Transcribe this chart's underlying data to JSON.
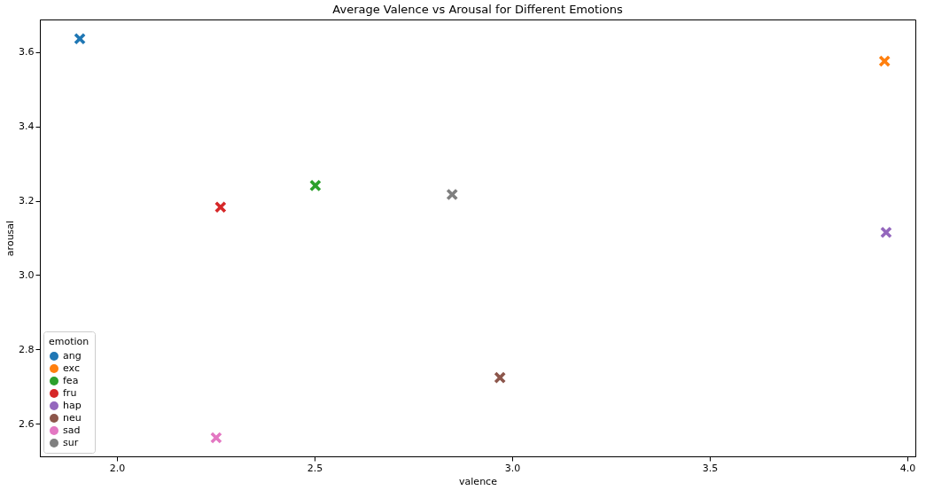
{
  "chart_data": {
    "type": "scatter",
    "title": "Average Valence vs Arousal for Different Emotions",
    "xlabel": "valence",
    "ylabel": "arousal",
    "legend_title": "emotion",
    "legend": "bottom left",
    "grid": false,
    "marker": "cross",
    "xlim": [
      1.805,
      4.02
    ],
    "xticks": [
      {
        "value": 2,
        "label": "2.0"
      },
      2.5,
      {
        "value": 3,
        "label": "3.0"
      },
      3.5,
      {
        "value": 4,
        "label": "4.0"
      }
    ],
    "ylim": [
      2.512,
      3.688
    ],
    "yticks": [
      2.6,
      2.8,
      {
        "value": 3,
        "label": "3.0"
      },
      3.2,
      3.4,
      3.6
    ],
    "series": [
      {
        "name": "ang",
        "color": "#1f77b4",
        "x": [
          1.906
        ],
        "values": [
          3.636
        ]
      },
      {
        "name": "exc",
        "color": "#ff7f0e",
        "x": [
          3.942
        ],
        "values": [
          3.576
        ]
      },
      {
        "name": "fea",
        "color": "#2ca02c",
        "x": [
          2.502
        ],
        "values": [
          3.241
        ]
      },
      {
        "name": "fru",
        "color": "#d62728",
        "x": [
          2.262
        ],
        "values": [
          3.183
        ]
      },
      {
        "name": "hap",
        "color": "#9467bd",
        "x": [
          3.946
        ],
        "values": [
          3.115
        ]
      },
      {
        "name": "neu",
        "color": "#8c564b",
        "x": [
          2.969
        ],
        "values": [
          2.724
        ]
      },
      {
        "name": "sad",
        "color": "#e377c2",
        "x": [
          2.251
        ],
        "values": [
          2.562
        ]
      },
      {
        "name": "sur",
        "color": "#7f7f7f",
        "x": [
          2.848
        ],
        "values": [
          3.217
        ]
      }
    ]
  }
}
